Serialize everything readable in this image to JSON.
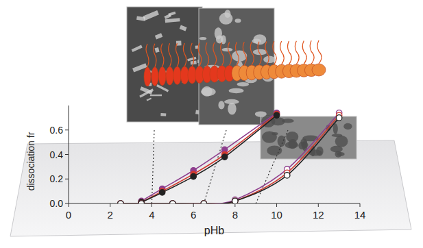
{
  "chart_data": {
    "type": "line",
    "x_label": "pHb",
    "y_label": "dissociation fr",
    "xlim": [
      0,
      14
    ],
    "xticks": [
      0,
      2,
      4,
      6,
      8,
      10,
      12,
      14
    ],
    "ylim": [
      0,
      0.8
    ],
    "yticks": [
      {
        "value": 0,
        "label": "0.0"
      },
      {
        "value": 0.2,
        "label": "0.2"
      },
      {
        "value": 0.4,
        "label": "0.4"
      },
      {
        "value": 0.6,
        "label": "0.6"
      }
    ],
    "series": [
      {
        "color": "#8e3f8e",
        "marker": "filled",
        "x": [
          3.5,
          4.5,
          6,
          7.5,
          10
        ],
        "values": [
          0.02,
          0.12,
          0.27,
          0.44,
          0.74
        ]
      },
      {
        "color": "#d23a2e",
        "marker": "filled",
        "x": [
          3.5,
          4.5,
          6,
          7.5,
          10
        ],
        "values": [
          0.01,
          0.1,
          0.24,
          0.4,
          0.73
        ]
      },
      {
        "color": "#222222",
        "marker": "filled",
        "x": [
          3.5,
          4.5,
          6,
          7.5,
          10
        ],
        "values": [
          0.01,
          0.09,
          0.22,
          0.38,
          0.72
        ]
      },
      {
        "color": "#8e3f8e",
        "marker": "open",
        "x": [
          2.5,
          3.5,
          5,
          6.5,
          8,
          10.5,
          13
        ],
        "values": [
          0,
          0,
          0,
          0,
          0.03,
          0.28,
          0.74
        ]
      },
      {
        "color": "#d23a2e",
        "marker": "open",
        "x": [
          2.5,
          3.5,
          5,
          6.5,
          8,
          10.5,
          13
        ],
        "values": [
          0,
          0,
          0,
          0,
          0.02,
          0.25,
          0.72
        ]
      },
      {
        "color": "#222222",
        "marker": "open",
        "x": [
          2.5,
          3.5,
          5,
          6.5,
          8,
          10.5,
          13
        ],
        "values": [
          0,
          0,
          0,
          0,
          0.02,
          0.23,
          0.7
        ]
      }
    ]
  }
}
